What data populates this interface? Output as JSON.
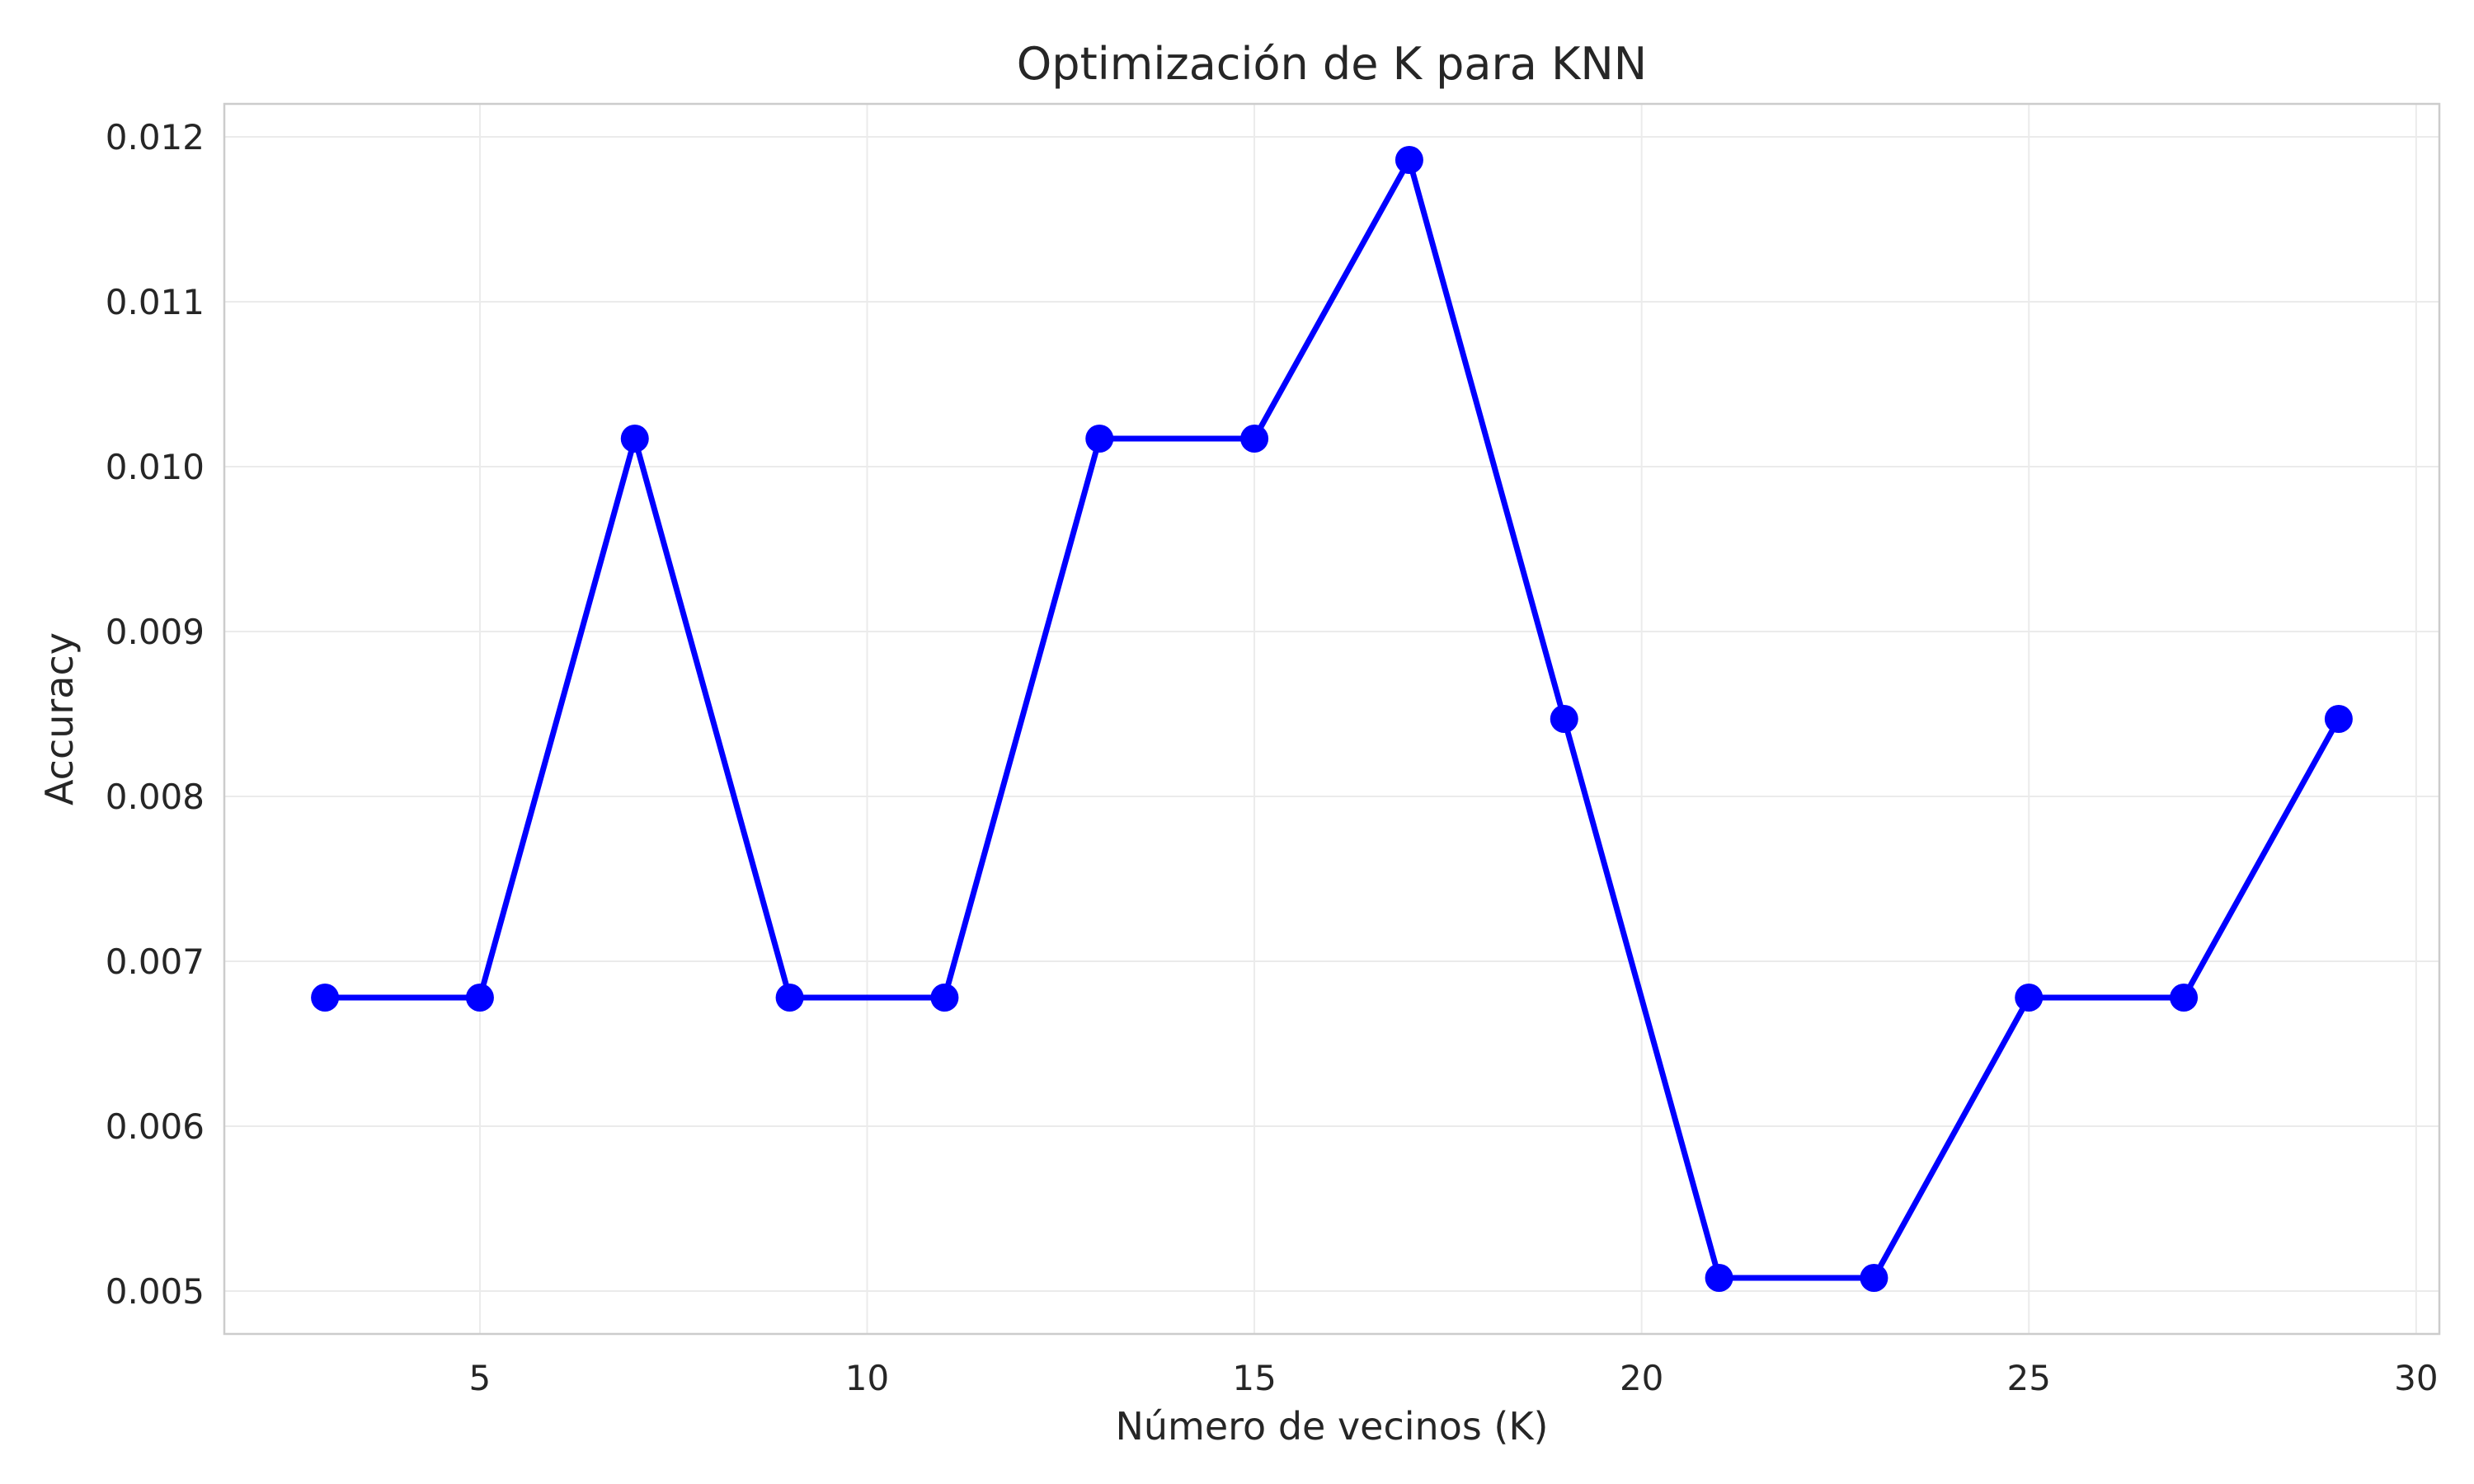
{
  "chart_data": {
    "type": "line",
    "title": "Optimización de K para KNN",
    "xlabel": "Número de vecinos (K)",
    "ylabel": "Accuracy",
    "x": [
      3,
      5,
      7,
      9,
      11,
      13,
      15,
      17,
      19,
      21,
      23,
      25,
      27,
      29
    ],
    "series": [
      {
        "values": [
          0.00678,
          0.00678,
          0.01017,
          0.00678,
          0.00678,
          0.01017,
          0.01017,
          0.01186,
          0.00847,
          0.00508,
          0.00508,
          0.00678,
          0.00678,
          0.00847
        ],
        "color": "#0000ff",
        "marker": "circle"
      }
    ],
    "xlim": [
      1.7,
      30.3
    ],
    "ylim": [
      0.00474,
      0.0122
    ],
    "xticks": [
      5,
      10,
      15,
      20,
      25,
      30
    ],
    "xtick_labels": [
      "5",
      "10",
      "15",
      "20",
      "25",
      "30"
    ],
    "yticks": [
      0.005,
      0.006,
      0.007,
      0.008,
      0.009,
      0.01,
      0.011,
      0.012
    ],
    "ytick_labels": [
      "0.005",
      "0.006",
      "0.007",
      "0.008",
      "0.009",
      "0.010",
      "0.011",
      "0.012"
    ],
    "grid": true,
    "legend": "none"
  }
}
